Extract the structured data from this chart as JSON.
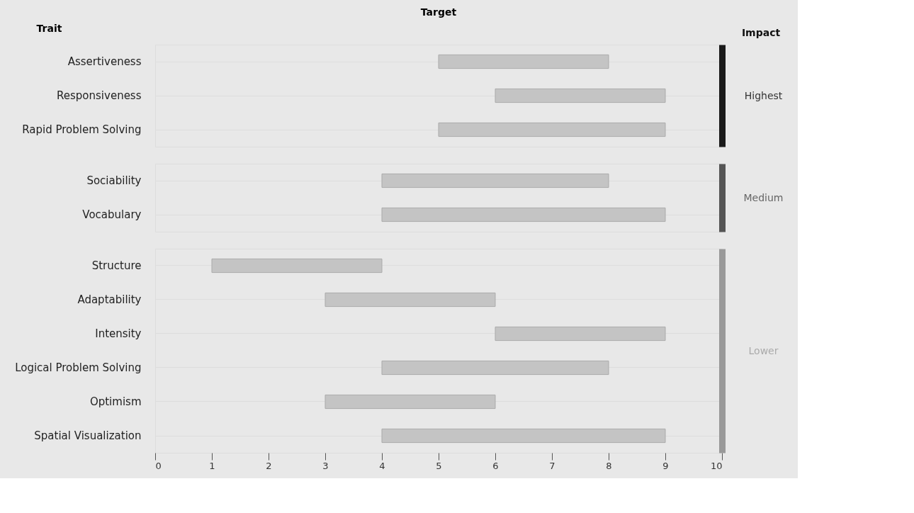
{
  "chart_data": [
    {
      "type": "bar",
      "orientation": "horizontal",
      "title": "Target",
      "ylabel": "Trait",
      "y2label": "Highest",
      "annotations": [
        "Impact"
      ],
      "categories": [
        "Assertiveness",
        "Responsiveness",
        "Rapid Problem Solving"
      ],
      "base": [
        5,
        6,
        5
      ],
      "values": [
        3,
        3,
        4
      ],
      "color": "#c4c4c4",
      "xlim": [
        0,
        10
      ],
      "xticks": [
        0,
        1,
        2,
        3,
        4,
        5,
        6,
        7,
        8,
        9,
        10
      ],
      "grid": "y",
      "tick_labels": "y"
    },
    {
      "type": "bar",
      "orientation": "horizontal",
      "y2label": "Medium",
      "categories": [
        "Sociability",
        "Vocabulary"
      ],
      "base": [
        4,
        4
      ],
      "values": [
        4,
        5
      ],
      "color": "#c4c4c4",
      "xlim": [
        0,
        10
      ],
      "xticks": [
        0,
        1,
        2,
        3,
        4,
        5,
        6,
        7,
        8,
        9,
        10
      ],
      "grid": "y",
      "tick_labels": "y"
    },
    {
      "type": "bar",
      "orientation": "horizontal",
      "y2label": "Lower",
      "categories": [
        "Structure",
        "Adaptability",
        "Intensity",
        "Logical Problem Solving",
        "Optimism",
        "Spatial Visualization"
      ],
      "base": [
        1,
        3,
        6,
        4,
        3,
        4
      ],
      "values": [
        3,
        3,
        3,
        4,
        3,
        5
      ],
      "color": "#c4c4c4",
      "xlim": [
        0,
        10
      ],
      "xticks": [
        0,
        1,
        2,
        3,
        4,
        5,
        6,
        7,
        8,
        9,
        10
      ],
      "grid": "y"
    }
  ]
}
